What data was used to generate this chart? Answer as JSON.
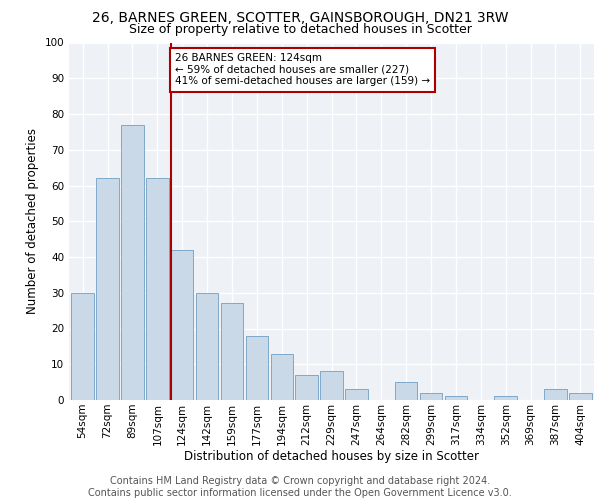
{
  "title": "26, BARNES GREEN, SCOTTER, GAINSBOROUGH, DN21 3RW",
  "subtitle": "Size of property relative to detached houses in Scotter",
  "xlabel": "Distribution of detached houses by size in Scotter",
  "ylabel": "Number of detached properties",
  "categories": [
    "54sqm",
    "72sqm",
    "89sqm",
    "107sqm",
    "124sqm",
    "142sqm",
    "159sqm",
    "177sqm",
    "194sqm",
    "212sqm",
    "229sqm",
    "247sqm",
    "264sqm",
    "282sqm",
    "299sqm",
    "317sqm",
    "334sqm",
    "352sqm",
    "369sqm",
    "387sqm",
    "404sqm"
  ],
  "values": [
    30,
    62,
    77,
    62,
    42,
    30,
    27,
    18,
    13,
    7,
    8,
    3,
    0,
    5,
    2,
    1,
    0,
    1,
    0,
    3,
    2
  ],
  "bar_color": "#c9d9e8",
  "bar_edge_color": "#7fa8c9",
  "vline_color": "#aa0000",
  "annotation_text": "26 BARNES GREEN: 124sqm\n← 59% of detached houses are smaller (227)\n41% of semi-detached houses are larger (159) →",
  "annotation_box_color": "#ffffff",
  "annotation_box_edge_color": "#aa0000",
  "ylim": [
    0,
    100
  ],
  "yticks": [
    0,
    10,
    20,
    30,
    40,
    50,
    60,
    70,
    80,
    90,
    100
  ],
  "background_color": "#eef2f7",
  "footer_text": "Contains HM Land Registry data © Crown copyright and database right 2024.\nContains public sector information licensed under the Open Government Licence v3.0.",
  "title_fontsize": 10,
  "subtitle_fontsize": 9,
  "xlabel_fontsize": 8.5,
  "ylabel_fontsize": 8.5,
  "footer_fontsize": 7,
  "tick_fontsize": 7.5,
  "annot_fontsize": 7.5
}
